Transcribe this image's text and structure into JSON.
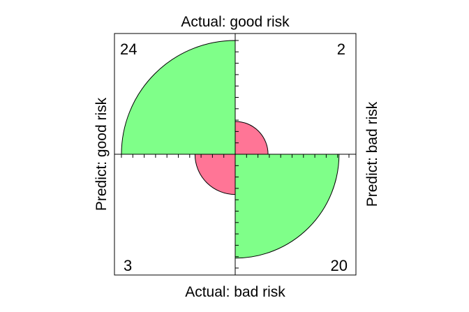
{
  "chart_data": {
    "type": "fourfold",
    "title": "",
    "top_label": "Actual: good risk",
    "bottom_label": "Actual: bad risk",
    "left_label": "Predict: good risk",
    "right_label": "Predict: bad risk",
    "cells": [
      {
        "quadrant": "top-left",
        "predict": "good risk",
        "actual": "good risk",
        "count": 24,
        "count_label": "24",
        "color": "#7fff89"
      },
      {
        "quadrant": "top-right",
        "predict": "bad risk",
        "actual": "good risk",
        "count": 2,
        "count_label": "2",
        "color": "#ff7596"
      },
      {
        "quadrant": "bottom-left",
        "predict": "good risk",
        "actual": "bad risk",
        "count": 3,
        "count_label": "3",
        "color": "#ff7596"
      },
      {
        "quadrant": "bottom-right",
        "predict": "bad risk",
        "actual": "bad risk",
        "count": 20,
        "count_label": "20",
        "color": "#7fff89"
      }
    ],
    "axis_ticks_per_half": 10
  }
}
